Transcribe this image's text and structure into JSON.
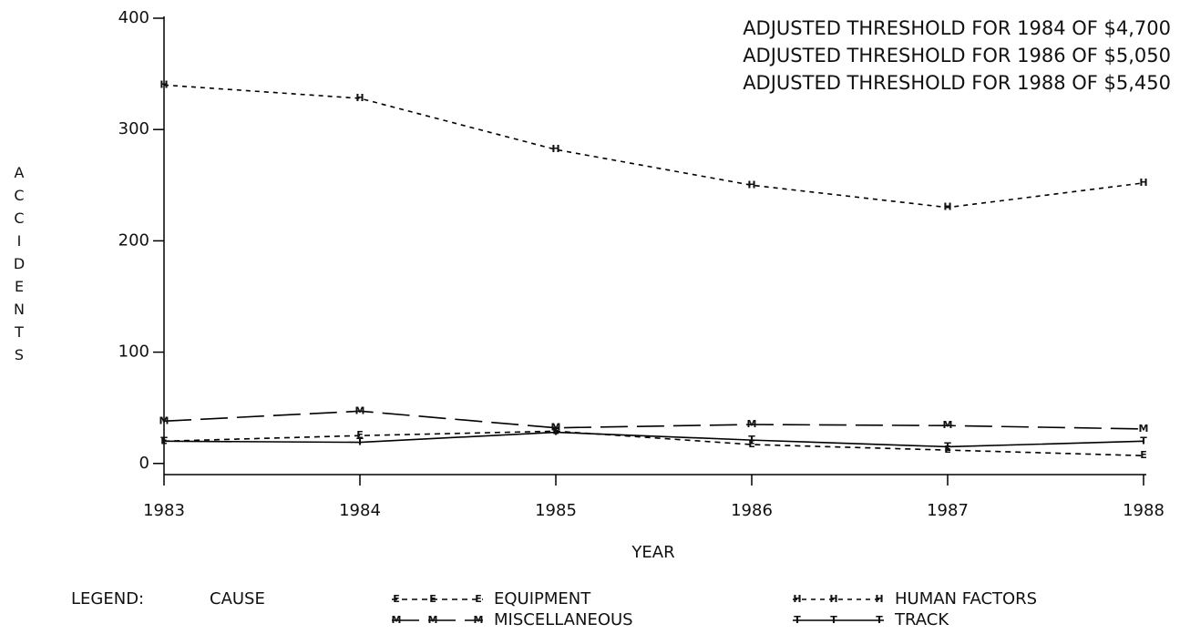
{
  "chart_data": {
    "type": "line",
    "annotations": [
      "ADJUSTED THRESHOLD FOR 1984 OF $4,700",
      "ADJUSTED THRESHOLD FOR 1986 OF $5,050",
      "ADJUSTED THRESHOLD FOR 1988 OF $5,450"
    ],
    "x_label": "YEAR",
    "y_label": "ACCIDENTS",
    "x": [
      1983,
      1984,
      1985,
      1986,
      1987,
      1988
    ],
    "xlim": [
      1983,
      1988
    ],
    "xticks": [
      1983,
      1984,
      1985,
      1986,
      1987,
      1988
    ],
    "ylim": [
      -10,
      400
    ],
    "yticks": [
      0,
      100,
      200,
      300,
      400
    ],
    "legend_title": "LEGEND:",
    "legend_subtitle": "CAUSE",
    "series": [
      {
        "name": "EQUIPMENT",
        "marker": "E",
        "dash": "6,5",
        "color": "#000000",
        "values": [
          20,
          25,
          29,
          17,
          12,
          7
        ]
      },
      {
        "name": "HUMAN FACTORS",
        "marker": "H",
        "dash": "5,5",
        "color": "#000000",
        "values": [
          340,
          328,
          282,
          250,
          230,
          252
        ]
      },
      {
        "name": "MISCELLANEOUS",
        "marker": "M",
        "dash": "30,10",
        "color": "#000000",
        "values": [
          38,
          47,
          32,
          35,
          34,
          31
        ]
      },
      {
        "name": "TRACK",
        "marker": "T",
        "dash": "none",
        "color": "#000000",
        "values": [
          20,
          19,
          28,
          21,
          15,
          20
        ]
      }
    ]
  }
}
